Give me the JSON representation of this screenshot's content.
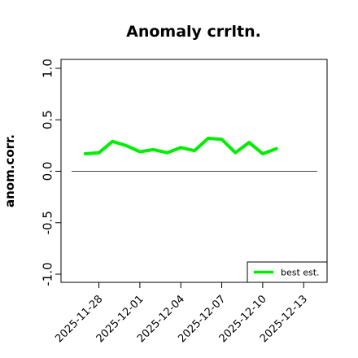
{
  "chart_data": {
    "type": "line",
    "title": "Anomaly crrltn.",
    "xlabel": "",
    "ylabel": "anom.corr.",
    "ylim": [
      -1.0,
      1.0
    ],
    "yticks": [
      "-1.0",
      "-0.5",
      "0.0",
      "0.5",
      "1.0"
    ],
    "x_start": "2025-11-26",
    "x_end": "2025-12-14",
    "xticks": [
      "2025-11-28",
      "2025-12-01",
      "2025-12-04",
      "2025-12-07",
      "2025-12-10",
      "2025-12-13"
    ],
    "xtick_colors": [
      "#000000",
      "#000000",
      "#228B22",
      "#000000",
      "#000000",
      "#000000"
    ],
    "reference_line": {
      "y": 0.0,
      "color": "#444444",
      "x_from": "2025-11-26",
      "x_to": "2025-12-14"
    },
    "series": [
      {
        "name": "best est.",
        "color": "#00ee00",
        "x": [
          "2025-11-27",
          "2025-11-28",
          "2025-11-29",
          "2025-11-30",
          "2025-12-01",
          "2025-12-02",
          "2025-12-03",
          "2025-12-04",
          "2025-12-05",
          "2025-12-06",
          "2025-12-07",
          "2025-12-08",
          "2025-12-09",
          "2025-12-10",
          "2025-12-11"
        ],
        "values": [
          0.17,
          0.18,
          0.29,
          0.25,
          0.19,
          0.21,
          0.18,
          0.23,
          0.2,
          0.32,
          0.31,
          0.18,
          0.28,
          0.17,
          0.22
        ]
      }
    ],
    "grid": false,
    "legend_position": "bottom-right"
  }
}
